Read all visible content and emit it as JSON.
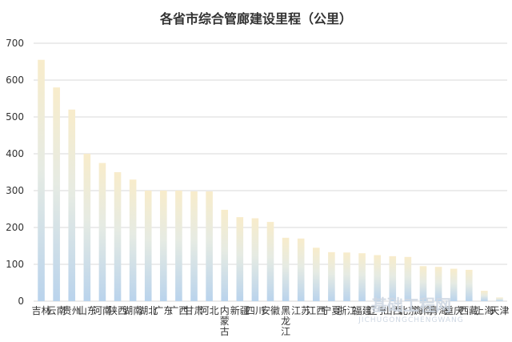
{
  "chart_data": {
    "type": "bar",
    "title": "各省市综合管廊建设里程（公里）",
    "categories": [
      "吉林",
      "云南",
      "贵州",
      "山东",
      "河南",
      "陕西",
      "湖南",
      "湖北",
      "广东",
      "广西",
      "甘肃",
      "河北",
      "内蒙古",
      "新疆",
      "四川",
      "安徽",
      "黑龙江",
      "江苏",
      "江西",
      "宁夏",
      "浙江",
      "福建",
      "辽宁",
      "山西",
      "北京",
      "海南",
      "青海",
      "重庆",
      "西藏",
      "上海",
      "天津"
    ],
    "values": [
      655,
      580,
      520,
      400,
      375,
      350,
      330,
      300,
      300,
      300,
      298,
      298,
      248,
      228,
      225,
      215,
      172,
      170,
      145,
      133,
      132,
      130,
      125,
      122,
      120,
      95,
      93,
      88,
      85,
      28,
      10
    ],
    "ylim": [
      0,
      700
    ],
    "yticks": [
      0,
      100,
      200,
      300,
      400,
      500,
      600,
      700
    ],
    "grid": true,
    "legend": "none",
    "colors": {
      "bar_top": "#f8eccb",
      "bar_mid": "#e6ebe3",
      "bar_bottom": "#b9d3ec",
      "grid": "#d9d9d9",
      "text": "#333333"
    }
  },
  "watermark": {
    "main": "基础工程网",
    "sub": "JICHUGONGCHENGWANG"
  }
}
